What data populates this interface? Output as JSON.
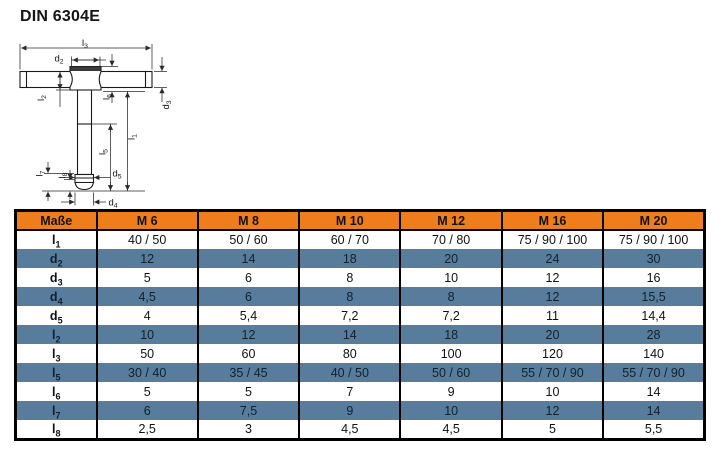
{
  "page": {
    "title": "DIN 6304E"
  },
  "drawing": {
    "dims": {
      "l3": {
        "base": "l",
        "sub": "3"
      },
      "d2": {
        "base": "d",
        "sub": "2"
      },
      "l2": {
        "base": "l",
        "sub": "2"
      },
      "l6": {
        "base": "l",
        "sub": "6"
      },
      "d3": {
        "base": "d",
        "sub": "3"
      },
      "l1": {
        "base": "l",
        "sub": "1"
      },
      "l5": {
        "base": "l",
        "sub": "5"
      },
      "d5": {
        "base": "d",
        "sub": "5"
      },
      "l7": {
        "base": "l",
        "sub": "7"
      },
      "l8": {
        "base": "l",
        "sub": "8"
      },
      "d4": {
        "base": "d",
        "sub": "4"
      }
    }
  },
  "table": {
    "headers": [
      "Maße",
      "M 6",
      "M 8",
      "M 10",
      "M 12",
      "M 16",
      "M 20"
    ],
    "rows": [
      {
        "base": "l",
        "sub": "1",
        "alt": false,
        "values": [
          "40 / 50",
          "50 / 60",
          "60 / 70",
          "70 / 80",
          "75 / 90 / 100",
          "75 / 90 / 100"
        ]
      },
      {
        "base": "d",
        "sub": "2",
        "alt": true,
        "values": [
          "12",
          "14",
          "18",
          "20",
          "24",
          "30"
        ]
      },
      {
        "base": "d",
        "sub": "3",
        "alt": false,
        "values": [
          "5",
          "6",
          "8",
          "10",
          "12",
          "16"
        ]
      },
      {
        "base": "d",
        "sub": "4",
        "alt": true,
        "values": [
          "4,5",
          "6",
          "8",
          "8",
          "12",
          "15,5"
        ]
      },
      {
        "base": "d",
        "sub": "5",
        "alt": false,
        "values": [
          "4",
          "5,4",
          "7,2",
          "7,2",
          "11",
          "14,4"
        ]
      },
      {
        "base": "l",
        "sub": "2",
        "alt": true,
        "values": [
          "10",
          "12",
          "14",
          "18",
          "20",
          "28"
        ]
      },
      {
        "base": "l",
        "sub": "3",
        "alt": false,
        "values": [
          "50",
          "60",
          "80",
          "100",
          "120",
          "140"
        ]
      },
      {
        "base": "l",
        "sub": "5",
        "alt": true,
        "values": [
          "30 / 40",
          "35 / 45",
          "40 / 50",
          "50 / 60",
          "55 / 70 / 90",
          "55 / 70 / 90"
        ]
      },
      {
        "base": "l",
        "sub": "6",
        "alt": false,
        "values": [
          "5",
          "5",
          "7",
          "9",
          "10",
          "14"
        ]
      },
      {
        "base": "l",
        "sub": "7",
        "alt": true,
        "values": [
          "6",
          "7,5",
          "9",
          "10",
          "12",
          "14"
        ]
      },
      {
        "base": "l",
        "sub": "8",
        "alt": false,
        "values": [
          "2,5",
          "3",
          "4,5",
          "4,5",
          "5",
          "5,5"
        ]
      }
    ]
  },
  "colors": {
    "header_bg": "#ee7e1c",
    "alt_row_bg": "#587c9c",
    "border": "#000000",
    "hub_band": "#3b3b3b"
  }
}
